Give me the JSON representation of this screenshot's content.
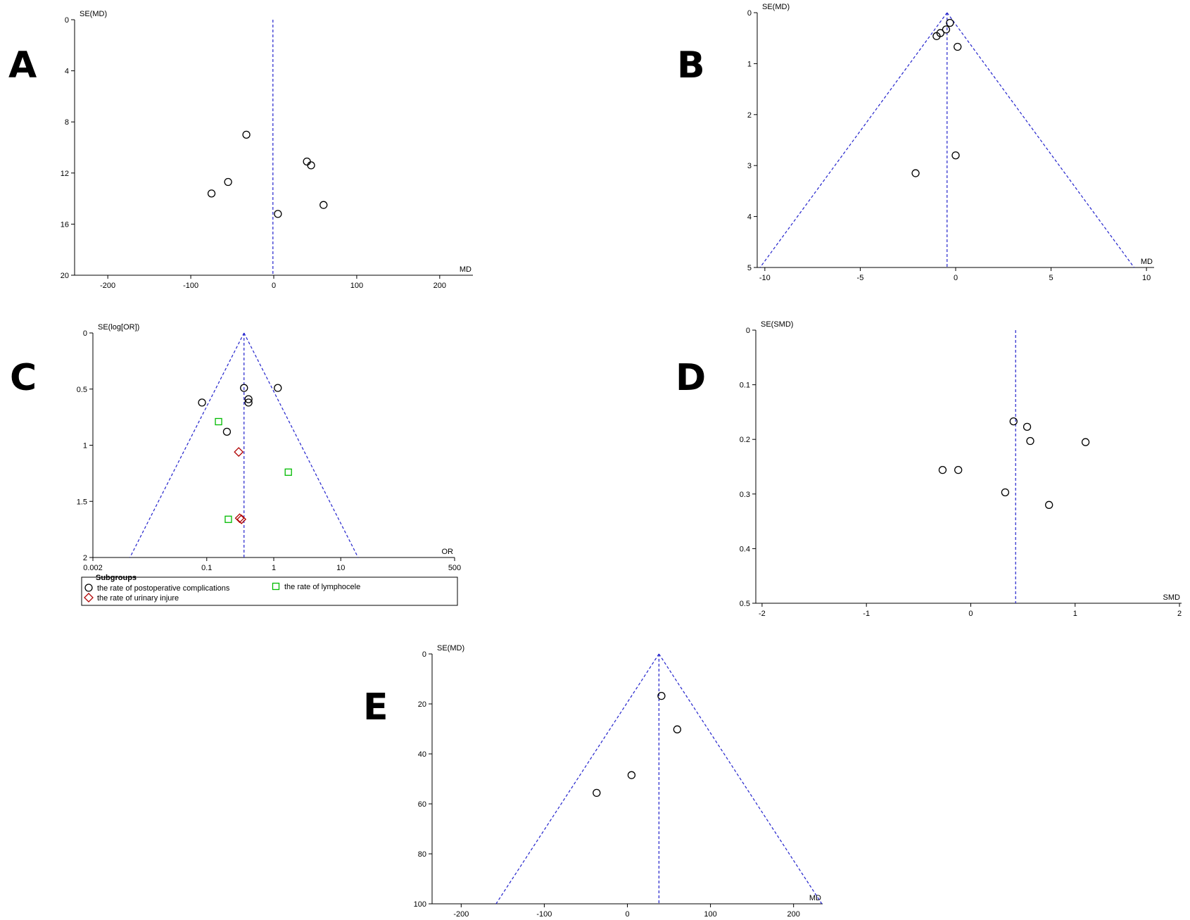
{
  "chart_data": [
    {
      "type": "scatter",
      "panel": "A",
      "ylabel": "SE(MD)",
      "xlabel": "MD",
      "xlim": [
        -240,
        240
      ],
      "ylim": [
        0,
        20
      ],
      "y_reversed": true,
      "xticks": [
        -200,
        -100,
        0,
        100,
        200
      ],
      "yticks": [
        0,
        4,
        8,
        12,
        16,
        20
      ],
      "pooled_estimate": -1,
      "funnel": false,
      "series": [
        {
          "marker": "circle",
          "color": "#000000",
          "points": [
            [
              -33,
              9.0
            ],
            [
              40,
              11.1
            ],
            [
              45,
              11.4
            ],
            [
              -55,
              12.7
            ],
            [
              -75,
              13.6
            ],
            [
              60,
              14.5
            ],
            [
              5,
              15.2
            ]
          ]
        }
      ]
    },
    {
      "type": "scatter",
      "panel": "B",
      "ylabel": "SE(MD)",
      "xlabel": "MD",
      "xlim": [
        -10.4,
        10.4
      ],
      "ylim": [
        0,
        5
      ],
      "y_reversed": true,
      "xticks": [
        -10,
        -5,
        0,
        5,
        10
      ],
      "yticks": [
        0,
        1,
        2,
        3,
        4,
        5
      ],
      "pooled_estimate": -0.45,
      "funnel": true,
      "series": [
        {
          "marker": "circle",
          "color": "#000000",
          "points": [
            [
              -0.3,
              0.2
            ],
            [
              -0.5,
              0.33
            ],
            [
              -0.8,
              0.4
            ],
            [
              -1.0,
              0.46
            ],
            [
              0.1,
              0.67
            ],
            [
              0.0,
              2.8
            ],
            [
              -2.1,
              3.15
            ]
          ]
        }
      ]
    },
    {
      "type": "scatter",
      "panel": "C",
      "ylabel": "SE(log[OR])",
      "xlabel": "OR",
      "x_scale": "log",
      "xlim": [
        0.002,
        500
      ],
      "ylim": [
        0,
        2
      ],
      "y_reversed": true,
      "xticks": [
        0.002,
        0.1,
        1,
        10,
        500
      ],
      "xtick_labels": [
        "0.002",
        "0.1",
        "1",
        "10",
        "500"
      ],
      "yticks": [
        0,
        0.5,
        1,
        1.5,
        2
      ],
      "pooled_estimate": 0.36,
      "funnel": true,
      "legend": {
        "title": "Subgroups",
        "entries": [
          "the rate of postoperative complications",
          "the rate of lymphocele",
          "the rate of urinary injure"
        ]
      },
      "series": [
        {
          "name": "the rate of postoperative complications",
          "marker": "circle",
          "color": "#000000",
          "points": [
            [
              0.36,
              0.49
            ],
            [
              1.15,
              0.49
            ],
            [
              0.42,
              0.59
            ],
            [
              0.42,
              0.62
            ],
            [
              0.085,
              0.62
            ],
            [
              0.2,
              0.88
            ]
          ]
        },
        {
          "name": "the rate of lymphocele",
          "marker": "square",
          "color": "#00bb00",
          "points": [
            [
              0.15,
              0.79
            ],
            [
              1.65,
              1.24
            ],
            [
              0.21,
              1.66
            ]
          ]
        },
        {
          "name": "the rate of urinary injure",
          "marker": "diamond",
          "color": "#b00000",
          "points": [
            [
              0.3,
              1.06
            ],
            [
              0.31,
              1.65
            ],
            [
              0.33,
              1.66
            ]
          ]
        }
      ]
    },
    {
      "type": "scatter",
      "panel": "D",
      "ylabel": "SE(SMD)",
      "xlabel": "SMD",
      "xlim": [
        -2.06,
        2.02
      ],
      "ylim": [
        0,
        0.5
      ],
      "y_reversed": true,
      "xticks": [
        -2,
        -1,
        0,
        1,
        2
      ],
      "yticks": [
        0,
        0.1,
        0.2,
        0.3,
        0.4,
        0.5
      ],
      "ytick_labels": [
        "0",
        "0.1",
        "0.2",
        "0.3",
        "0.4",
        "0.5"
      ],
      "pooled_estimate": 0.43,
      "funnel": false,
      "series": [
        {
          "marker": "circle",
          "color": "#000000",
          "points": [
            [
              0.41,
              0.167
            ],
            [
              0.54,
              0.177
            ],
            [
              0.57,
              0.203
            ],
            [
              1.1,
              0.205
            ],
            [
              -0.27,
              0.256
            ],
            [
              -0.12,
              0.256
            ],
            [
              0.33,
              0.297
            ],
            [
              0.75,
              0.32
            ]
          ]
        }
      ]
    },
    {
      "type": "scatter",
      "panel": "E",
      "ylabel": "SE(MD)",
      "xlabel": "MD",
      "xlim": [
        -235,
        235
      ],
      "ylim": [
        0,
        100
      ],
      "y_reversed": true,
      "xticks": [
        -200,
        -100,
        0,
        100,
        200
      ],
      "yticks": [
        0,
        20,
        40,
        60,
        80,
        100
      ],
      "pooled_estimate": 38,
      "funnel": true,
      "series": [
        {
          "marker": "circle",
          "color": "#000000",
          "points": [
            [
              41,
              16.8
            ],
            [
              60,
              30.2
            ],
            [
              5,
              48.5
            ],
            [
              -37,
              55.6
            ]
          ]
        }
      ]
    }
  ]
}
